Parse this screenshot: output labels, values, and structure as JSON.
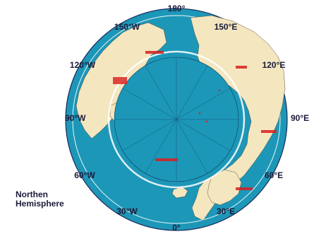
{
  "map": {
    "longitude_labels": {
      "top": "180°",
      "top_left": "150°W",
      "top_right": "150°E",
      "upper_left": "120°W",
      "upper_right": "120°E",
      "left": "90°W",
      "right": "90°E",
      "lower_left": "60°W",
      "lower_right": "60°E",
      "bottom_left": "30°W",
      "bottom_right": "30°E",
      "bottom": "0°"
    },
    "caption": {
      "line1": "Northen",
      "line2": "Hemisphere"
    },
    "colors": {
      "ocean": "#1d97b8",
      "land": "#f4e6bf",
      "ring": "#1d97b8",
      "labels": "#d91c1c",
      "text": "#1a1a3a"
    }
  }
}
